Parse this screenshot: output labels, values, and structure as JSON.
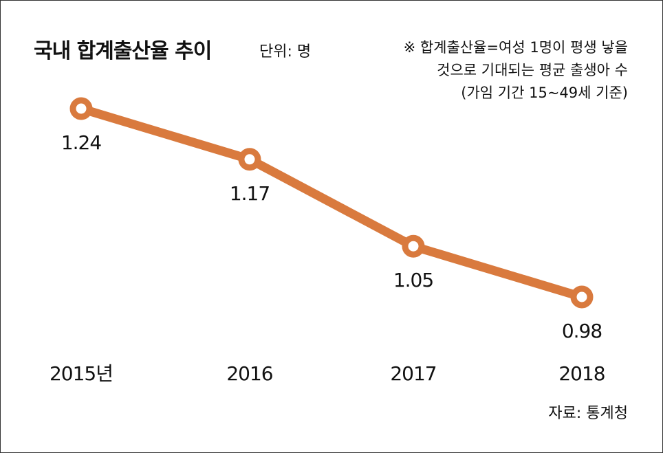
{
  "header": {
    "title": "국내 합계출산율 추이",
    "unit": "단위: 명"
  },
  "note": {
    "lines": [
      "※ 합계출산율=여성 1명이 평생 낳을",
      "것으로 기대되는 평균 출생아 수",
      "(가임 기간 15~49세 기준)"
    ]
  },
  "source": "자료: 통계청",
  "colors": {
    "line": "#D97A3E",
    "text": "#111111"
  },
  "chart_data": {
    "type": "line",
    "title": "국내 합계출산율 추이",
    "x": [
      "2015년",
      "2016",
      "2017",
      "2018"
    ],
    "series": [
      {
        "values": [
          1.24,
          1.17,
          1.05,
          0.98
        ],
        "labels": [
          "1.24",
          "1.17",
          "1.05",
          "0.98"
        ]
      }
    ],
    "ylim": [
      0.9,
      1.3
    ],
    "grid": false,
    "legend": "none"
  }
}
